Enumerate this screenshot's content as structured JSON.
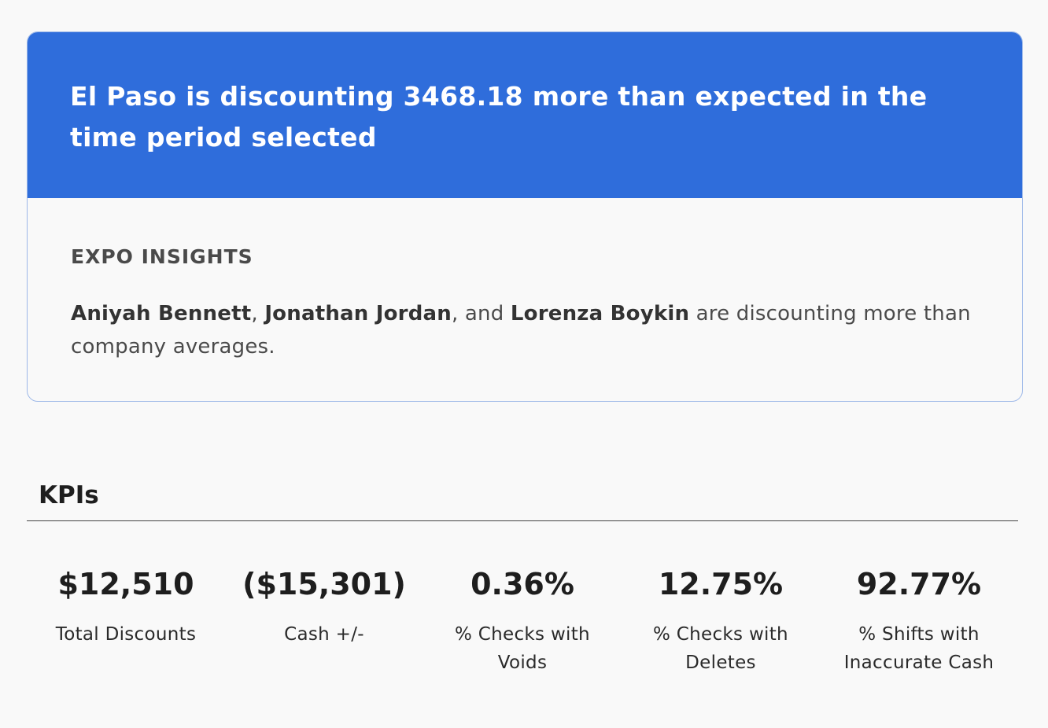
{
  "alert": {
    "title": "El Paso is discounting 3468.18 more than expected in the time period selected"
  },
  "insights": {
    "heading": "EXPO INSIGHTS",
    "names": [
      "Aniyah Bennett",
      "Jonathan Jordan",
      "Lorenza Boykin"
    ],
    "sep1": ", ",
    "sep2": ", and ",
    "suffix": " are discounting more than company averages."
  },
  "kpis": {
    "title": "KPIs",
    "items": [
      {
        "value": "$12,510",
        "label": "Total Discounts"
      },
      {
        "value": "($15,301)",
        "label": "Cash +/-"
      },
      {
        "value": "0.36%",
        "label": "% Checks with Voids"
      },
      {
        "value": "12.75%",
        "label": "% Checks with Deletes"
      },
      {
        "value": "92.77%",
        "label": "% Shifts with Inaccurate Cash"
      }
    ]
  },
  "colors": {
    "alert_header_bg": "#2f6ddb",
    "card_border": "#9db8e8"
  }
}
